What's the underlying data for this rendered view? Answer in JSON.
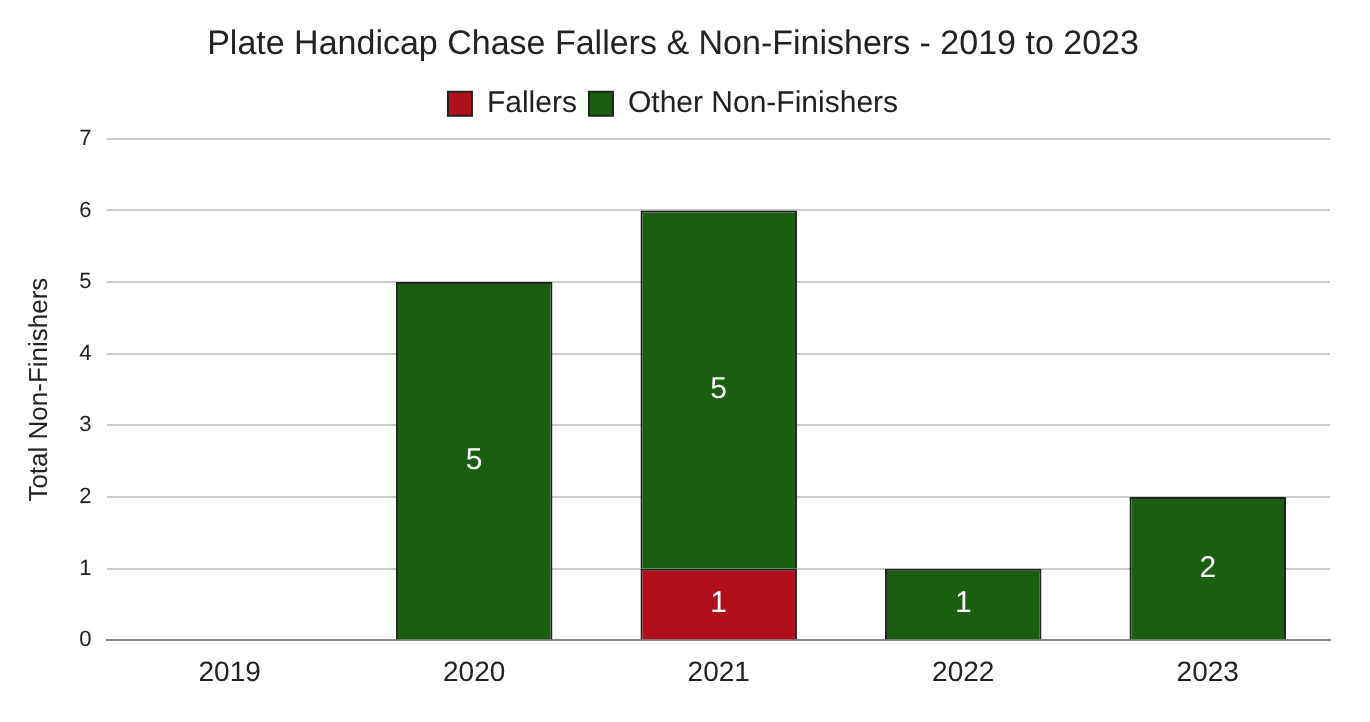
{
  "chart_data": {
    "type": "bar",
    "title": "Plate Handicap Chase Fallers & Non-Finishers - 2019 to 2023",
    "ylabel": "Total Non-Finishers",
    "categories": [
      "2019",
      "2020",
      "2021",
      "2022",
      "2023"
    ],
    "stacked": true,
    "series": [
      {
        "name": "Fallers",
        "color": "#b0101c",
        "values": [
          0,
          0,
          1,
          0,
          0
        ],
        "value_labels": [
          null,
          null,
          "1",
          null,
          null
        ]
      },
      {
        "name": "Other Non-Finishers",
        "color": "#1b5e12",
        "values": [
          0,
          5,
          5,
          1,
          2
        ],
        "value_labels": [
          null,
          "5",
          "5",
          "1",
          "2"
        ]
      }
    ],
    "ylim": [
      0,
      7
    ],
    "yticks": [
      0,
      1,
      2,
      3,
      4,
      5,
      6,
      7
    ],
    "grid": "y",
    "legend": "top"
  }
}
